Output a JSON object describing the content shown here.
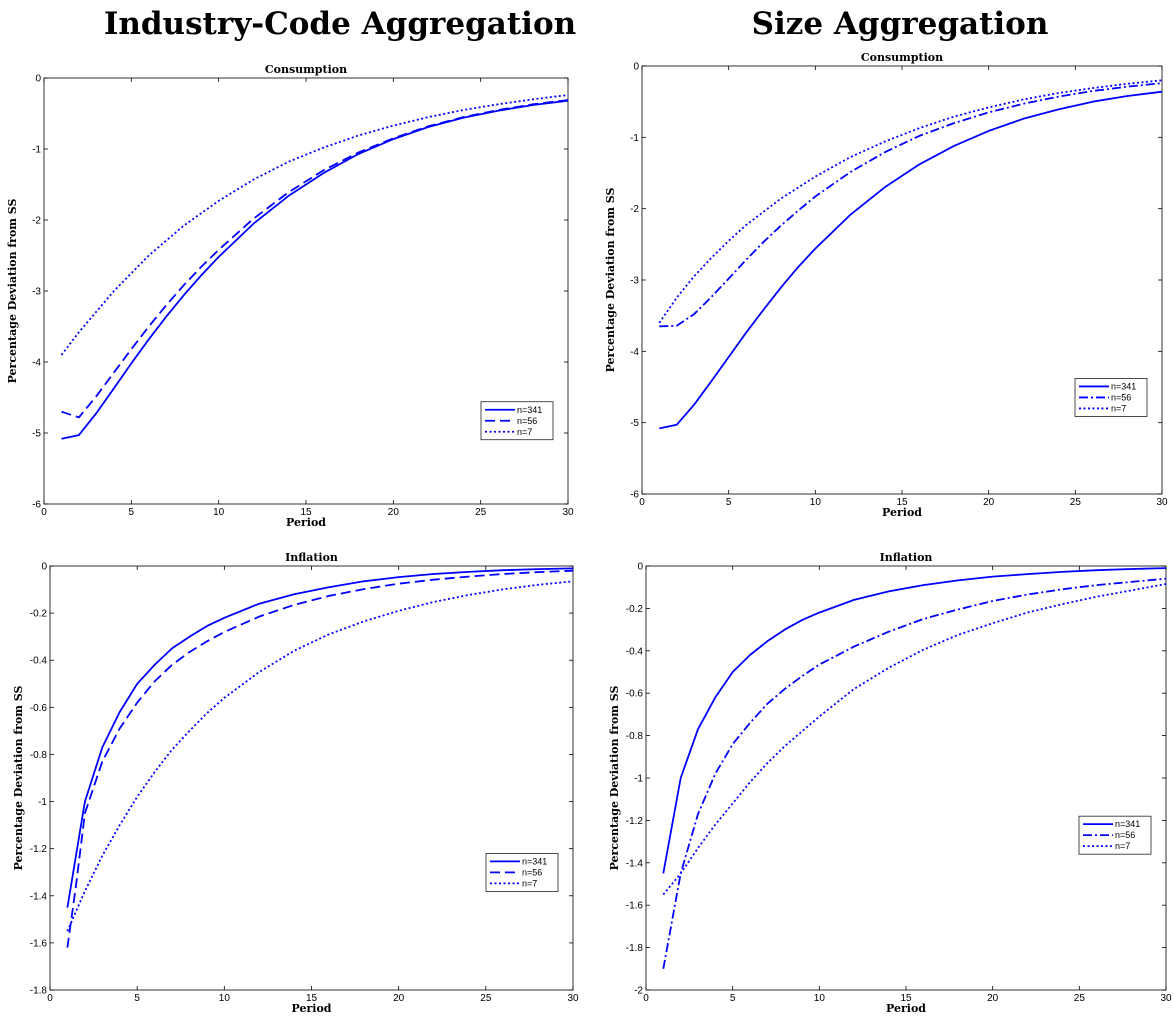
{
  "headings": {
    "left": "Industry-Code Aggregation",
    "right": "Size Aggregation"
  },
  "line_color": "#0000ff",
  "chart_data": [
    {
      "id": "tl",
      "type": "line",
      "title": "Consumption",
      "xlabel": "Period",
      "ylabel": "Percentage Deviation from SS",
      "xlim": [
        0,
        30
      ],
      "ylim": [
        -6,
        0
      ],
      "xticks": [
        0,
        5,
        10,
        15,
        20,
        25,
        30
      ],
      "yticks": [
        0,
        -1,
        -2,
        -3,
        -4,
        -5,
        -6
      ],
      "legend_position": "lower-right",
      "series": [
        {
          "name": "n=341",
          "style": "solid",
          "x": [
            1,
            2,
            3,
            4,
            5,
            6,
            7,
            8,
            9,
            10,
            12,
            14,
            16,
            18,
            20,
            22,
            24,
            26,
            28,
            30
          ],
          "y": [
            -5.08,
            -5.03,
            -4.72,
            -4.37,
            -4.02,
            -3.68,
            -3.36,
            -3.06,
            -2.78,
            -2.52,
            -2.05,
            -1.66,
            -1.34,
            -1.07,
            -0.86,
            -0.69,
            -0.56,
            -0.46,
            -0.38,
            -0.32
          ]
        },
        {
          "name": "n=56",
          "style": "dashed",
          "x": [
            1,
            2,
            3,
            4,
            5,
            6,
            7,
            8,
            9,
            10,
            12,
            14,
            16,
            18,
            20,
            22,
            24,
            26,
            28,
            30
          ],
          "y": [
            -4.7,
            -4.78,
            -4.48,
            -4.15,
            -3.82,
            -3.5,
            -3.2,
            -2.92,
            -2.66,
            -2.42,
            -1.98,
            -1.61,
            -1.3,
            -1.05,
            -0.85,
            -0.68,
            -0.55,
            -0.45,
            -0.37,
            -0.31
          ]
        },
        {
          "name": "n=7",
          "style": "dotted",
          "x": [
            1,
            2,
            4,
            6,
            8,
            10,
            12,
            14,
            16,
            18,
            20,
            22,
            24,
            26,
            28,
            30
          ],
          "y": [
            -3.9,
            -3.58,
            -3.0,
            -2.5,
            -2.08,
            -1.73,
            -1.43,
            -1.18,
            -0.98,
            -0.81,
            -0.67,
            -0.55,
            -0.45,
            -0.37,
            -0.3,
            -0.24
          ]
        }
      ]
    },
    {
      "id": "tr",
      "type": "line",
      "title": "Consumption",
      "xlabel": "Period",
      "ylabel": "Percentage Deviation from SS",
      "xlim": [
        0,
        30
      ],
      "ylim": [
        -6,
        0
      ],
      "xticks": [
        0,
        5,
        10,
        15,
        20,
        25,
        30
      ],
      "yticks": [
        0,
        -1,
        -2,
        -3,
        -4,
        -5,
        -6
      ],
      "legend_position": "lower-right",
      "series": [
        {
          "name": "n=341",
          "style": "solid",
          "x": [
            1,
            2,
            3,
            4,
            5,
            6,
            7,
            8,
            9,
            10,
            12,
            14,
            16,
            18,
            20,
            22,
            24,
            26,
            28,
            30
          ],
          "y": [
            -5.08,
            -5.03,
            -4.75,
            -4.42,
            -4.08,
            -3.74,
            -3.42,
            -3.11,
            -2.82,
            -2.56,
            -2.09,
            -1.7,
            -1.38,
            -1.12,
            -0.91,
            -0.74,
            -0.61,
            -0.5,
            -0.42,
            -0.36
          ]
        },
        {
          "name": "n=56",
          "style": "dashdot",
          "x": [
            1,
            2,
            3,
            4,
            5,
            6,
            7,
            8,
            9,
            10,
            12,
            14,
            16,
            18,
            20,
            22,
            24,
            26,
            28,
            30
          ],
          "y": [
            -3.65,
            -3.64,
            -3.48,
            -3.24,
            -2.98,
            -2.72,
            -2.47,
            -2.24,
            -2.03,
            -1.83,
            -1.49,
            -1.21,
            -0.98,
            -0.8,
            -0.65,
            -0.53,
            -0.43,
            -0.35,
            -0.29,
            -0.24
          ]
        },
        {
          "name": "n=7",
          "style": "dotted",
          "x": [
            1,
            2,
            3,
            4,
            5,
            6,
            8,
            10,
            12,
            14,
            16,
            18,
            20,
            22,
            24,
            26,
            28,
            30
          ],
          "y": [
            -3.6,
            -3.25,
            -2.95,
            -2.69,
            -2.45,
            -2.23,
            -1.86,
            -1.55,
            -1.28,
            -1.06,
            -0.87,
            -0.71,
            -0.58,
            -0.47,
            -0.38,
            -0.31,
            -0.25,
            -0.2
          ]
        }
      ]
    },
    {
      "id": "bl",
      "type": "line",
      "title": "Inflation",
      "xlabel": "Period",
      "ylabel": "Percentage Deviation from SS",
      "xlim": [
        0,
        30
      ],
      "ylim": [
        -1.8,
        0
      ],
      "xticks": [
        0,
        5,
        10,
        15,
        20,
        25,
        30
      ],
      "yticks": [
        0,
        -0.2,
        -0.4,
        -0.6,
        -0.8,
        -1,
        -1.2,
        -1.4,
        -1.6,
        -1.8
      ],
      "legend_position": "lower-right",
      "series": [
        {
          "name": "n=341",
          "style": "solid",
          "x": [
            1,
            2,
            3,
            4,
            5,
            6,
            7,
            8,
            9,
            10,
            12,
            14,
            16,
            18,
            20,
            22,
            24,
            26,
            28,
            30
          ],
          "y": [
            -1.45,
            -1.0,
            -0.77,
            -0.62,
            -0.5,
            -0.42,
            -0.35,
            -0.3,
            -0.255,
            -0.22,
            -0.16,
            -0.12,
            -0.09,
            -0.065,
            -0.047,
            -0.034,
            -0.025,
            -0.018,
            -0.013,
            -0.01
          ]
        },
        {
          "name": "n=56",
          "style": "dashed",
          "x": [
            1,
            1.5,
            2,
            3,
            4,
            5,
            6,
            7,
            8,
            9,
            10,
            12,
            14,
            16,
            18,
            20,
            22,
            24,
            26,
            28,
            30
          ],
          "y": [
            -1.62,
            -1.35,
            -1.05,
            -0.83,
            -0.69,
            -0.58,
            -0.49,
            -0.42,
            -0.365,
            -0.32,
            -0.28,
            -0.215,
            -0.165,
            -0.127,
            -0.098,
            -0.075,
            -0.058,
            -0.045,
            -0.034,
            -0.026,
            -0.02
          ]
        },
        {
          "name": "n=7",
          "style": "dotted",
          "x": [
            1,
            2,
            3,
            4,
            5,
            6,
            7,
            8,
            9,
            10,
            12,
            14,
            16,
            18,
            20,
            22,
            24,
            26,
            28,
            30
          ],
          "y": [
            -1.55,
            -1.38,
            -1.23,
            -1.1,
            -0.98,
            -0.875,
            -0.78,
            -0.7,
            -0.625,
            -0.56,
            -0.45,
            -0.36,
            -0.29,
            -0.235,
            -0.19,
            -0.153,
            -0.123,
            -0.099,
            -0.08,
            -0.065
          ]
        }
      ]
    },
    {
      "id": "br",
      "type": "line",
      "title": "Inflation",
      "xlabel": "Period",
      "ylabel": "Percentage Deviation from SS",
      "xlim": [
        0,
        30
      ],
      "ylim": [
        -2,
        0
      ],
      "xticks": [
        0,
        5,
        10,
        15,
        20,
        25,
        30
      ],
      "yticks": [
        0,
        -0.2,
        -0.4,
        -0.6,
        -0.8,
        -1,
        -1.2,
        -1.4,
        -1.6,
        -1.8,
        -2
      ],
      "legend_position": "lower-right",
      "series": [
        {
          "name": "n=341",
          "style": "solid",
          "x": [
            1,
            2,
            3,
            4,
            5,
            6,
            7,
            8,
            9,
            10,
            12,
            14,
            16,
            18,
            20,
            22,
            24,
            26,
            28,
            30
          ],
          "y": [
            -1.45,
            -1.0,
            -0.77,
            -0.62,
            -0.5,
            -0.42,
            -0.355,
            -0.3,
            -0.255,
            -0.22,
            -0.16,
            -0.12,
            -0.09,
            -0.068,
            -0.05,
            -0.038,
            -0.028,
            -0.02,
            -0.014,
            -0.01
          ]
        },
        {
          "name": "n=56",
          "style": "dashdot",
          "x": [
            1,
            2,
            3,
            4,
            5,
            6,
            7,
            8,
            9,
            10,
            12,
            14,
            16,
            18,
            20,
            22,
            24,
            26,
            28,
            30
          ],
          "y": [
            -1.9,
            -1.45,
            -1.17,
            -0.98,
            -0.84,
            -0.74,
            -0.65,
            -0.58,
            -0.52,
            -0.465,
            -0.38,
            -0.31,
            -0.25,
            -0.205,
            -0.165,
            -0.135,
            -0.11,
            -0.09,
            -0.075,
            -0.06
          ]
        },
        {
          "name": "n=7",
          "style": "dotted",
          "x": [
            1,
            2,
            3,
            4,
            5,
            6,
            7,
            8,
            9,
            10,
            12,
            14,
            16,
            18,
            20,
            22,
            24,
            26,
            28,
            30
          ],
          "y": [
            -1.55,
            -1.45,
            -1.33,
            -1.22,
            -1.12,
            -1.02,
            -0.93,
            -0.85,
            -0.78,
            -0.71,
            -0.58,
            -0.48,
            -0.395,
            -0.325,
            -0.27,
            -0.22,
            -0.18,
            -0.145,
            -0.115,
            -0.085
          ]
        }
      ]
    }
  ]
}
